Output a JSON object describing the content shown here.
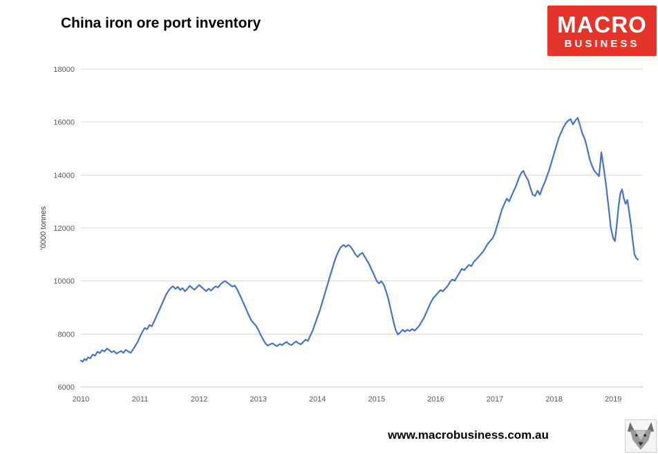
{
  "page": {
    "footer_url": "www.macrobusiness.com.au"
  },
  "logo": {
    "line1": "MACRO",
    "line2": "BUSINESS",
    "bg_color": "#e5352b",
    "text_color": "#ffffff"
  },
  "chart_data": {
    "type": "line",
    "title": "China iron ore port inventory",
    "xlabel": "",
    "ylabel": "'0000 tonnes",
    "xlim": [
      2010,
      2019.5
    ],
    "ylim": [
      6000,
      18000
    ],
    "x_ticks": [
      2010,
      2011,
      2012,
      2013,
      2014,
      2015,
      2016,
      2017,
      2018,
      2019
    ],
    "y_ticks": [
      6000,
      8000,
      10000,
      12000,
      14000,
      16000,
      18000
    ],
    "grid": true,
    "legend_position": "none",
    "line_color": "#4472c4",
    "gridline_color": "#d9d9d9",
    "axis_label_color": "#595959",
    "series": [
      {
        "name": "China iron ore port inventory",
        "points": [
          [
            2010.0,
            7000
          ],
          [
            2010.03,
            6950
          ],
          [
            2010.06,
            7060
          ],
          [
            2010.09,
            7010
          ],
          [
            2010.12,
            7120
          ],
          [
            2010.16,
            7080
          ],
          [
            2010.2,
            7230
          ],
          [
            2010.24,
            7180
          ],
          [
            2010.28,
            7330
          ],
          [
            2010.32,
            7280
          ],
          [
            2010.36,
            7390
          ],
          [
            2010.4,
            7340
          ],
          [
            2010.44,
            7450
          ],
          [
            2010.48,
            7390
          ],
          [
            2010.52,
            7310
          ],
          [
            2010.56,
            7360
          ],
          [
            2010.6,
            7260
          ],
          [
            2010.64,
            7310
          ],
          [
            2010.68,
            7360
          ],
          [
            2010.72,
            7290
          ],
          [
            2010.76,
            7400
          ],
          [
            2010.8,
            7340
          ],
          [
            2010.84,
            7290
          ],
          [
            2010.88,
            7410
          ],
          [
            2010.92,
            7550
          ],
          [
            2010.96,
            7700
          ],
          [
            2011.0,
            7900
          ],
          [
            2011.04,
            8080
          ],
          [
            2011.08,
            8230
          ],
          [
            2011.12,
            8180
          ],
          [
            2011.16,
            8340
          ],
          [
            2011.2,
            8290
          ],
          [
            2011.24,
            8480
          ],
          [
            2011.28,
            8680
          ],
          [
            2011.32,
            8880
          ],
          [
            2011.36,
            9080
          ],
          [
            2011.4,
            9280
          ],
          [
            2011.44,
            9480
          ],
          [
            2011.48,
            9630
          ],
          [
            2011.52,
            9740
          ],
          [
            2011.56,
            9800
          ],
          [
            2011.6,
            9700
          ],
          [
            2011.64,
            9780
          ],
          [
            2011.68,
            9660
          ],
          [
            2011.72,
            9730
          ],
          [
            2011.76,
            9610
          ],
          [
            2011.8,
            9700
          ],
          [
            2011.84,
            9820
          ],
          [
            2011.88,
            9740
          ],
          [
            2011.92,
            9670
          ],
          [
            2011.96,
            9760
          ],
          [
            2012.0,
            9850
          ],
          [
            2012.04,
            9770
          ],
          [
            2012.08,
            9690
          ],
          [
            2012.12,
            9620
          ],
          [
            2012.16,
            9710
          ],
          [
            2012.2,
            9640
          ],
          [
            2012.24,
            9730
          ],
          [
            2012.28,
            9800
          ],
          [
            2012.32,
            9760
          ],
          [
            2012.36,
            9880
          ],
          [
            2012.4,
            9950
          ],
          [
            2012.44,
            10000
          ],
          [
            2012.48,
            9930
          ],
          [
            2012.52,
            9860
          ],
          [
            2012.56,
            9790
          ],
          [
            2012.6,
            9830
          ],
          [
            2012.64,
            9700
          ],
          [
            2012.68,
            9510
          ],
          [
            2012.72,
            9310
          ],
          [
            2012.76,
            9110
          ],
          [
            2012.8,
            8910
          ],
          [
            2012.84,
            8710
          ],
          [
            2012.88,
            8520
          ],
          [
            2012.92,
            8410
          ],
          [
            2012.96,
            8310
          ],
          [
            2013.0,
            8160
          ],
          [
            2013.04,
            7960
          ],
          [
            2013.08,
            7800
          ],
          [
            2013.12,
            7650
          ],
          [
            2013.16,
            7560
          ],
          [
            2013.2,
            7610
          ],
          [
            2013.24,
            7650
          ],
          [
            2013.28,
            7580
          ],
          [
            2013.32,
            7545
          ],
          [
            2013.36,
            7620
          ],
          [
            2013.4,
            7580
          ],
          [
            2013.44,
            7650
          ],
          [
            2013.48,
            7700
          ],
          [
            2013.52,
            7620
          ],
          [
            2013.56,
            7580
          ],
          [
            2013.6,
            7660
          ],
          [
            2013.64,
            7720
          ],
          [
            2013.68,
            7650
          ],
          [
            2013.72,
            7610
          ],
          [
            2013.76,
            7700
          ],
          [
            2013.8,
            7790
          ],
          [
            2013.84,
            7740
          ],
          [
            2013.88,
            7940
          ],
          [
            2013.92,
            8140
          ],
          [
            2013.96,
            8390
          ],
          [
            2014.0,
            8640
          ],
          [
            2014.04,
            8890
          ],
          [
            2014.08,
            9190
          ],
          [
            2014.12,
            9490
          ],
          [
            2014.16,
            9790
          ],
          [
            2014.2,
            10090
          ],
          [
            2014.24,
            10390
          ],
          [
            2014.28,
            10690
          ],
          [
            2014.32,
            10940
          ],
          [
            2014.36,
            11140
          ],
          [
            2014.4,
            11290
          ],
          [
            2014.44,
            11360
          ],
          [
            2014.48,
            11290
          ],
          [
            2014.52,
            11360
          ],
          [
            2014.56,
            11300
          ],
          [
            2014.6,
            11160
          ],
          [
            2014.64,
            11010
          ],
          [
            2014.68,
            10910
          ],
          [
            2014.72,
            11010
          ],
          [
            2014.76,
            11060
          ],
          [
            2014.8,
            10910
          ],
          [
            2014.84,
            10760
          ],
          [
            2014.88,
            10610
          ],
          [
            2014.92,
            10410
          ],
          [
            2014.96,
            10210
          ],
          [
            2015.0,
            10010
          ],
          [
            2015.04,
            9910
          ],
          [
            2015.08,
            9990
          ],
          [
            2015.12,
            9860
          ],
          [
            2015.16,
            9610
          ],
          [
            2015.2,
            9310
          ],
          [
            2015.24,
            8910
          ],
          [
            2015.28,
            8510
          ],
          [
            2015.32,
            8160
          ],
          [
            2015.36,
            7980
          ],
          [
            2015.4,
            8060
          ],
          [
            2015.44,
            8160
          ],
          [
            2015.48,
            8090
          ],
          [
            2015.52,
            8160
          ],
          [
            2015.56,
            8110
          ],
          [
            2015.6,
            8190
          ],
          [
            2015.64,
            8130
          ],
          [
            2015.68,
            8210
          ],
          [
            2015.72,
            8310
          ],
          [
            2015.76,
            8460
          ],
          [
            2015.8,
            8610
          ],
          [
            2015.84,
            8810
          ],
          [
            2015.88,
            9010
          ],
          [
            2015.92,
            9210
          ],
          [
            2015.96,
            9360
          ],
          [
            2016.0,
            9460
          ],
          [
            2016.04,
            9560
          ],
          [
            2016.08,
            9660
          ],
          [
            2016.12,
            9610
          ],
          [
            2016.16,
            9710
          ],
          [
            2016.2,
            9810
          ],
          [
            2016.24,
            9960
          ],
          [
            2016.28,
            10060
          ],
          [
            2016.32,
            10010
          ],
          [
            2016.36,
            10160
          ],
          [
            2016.4,
            10310
          ],
          [
            2016.44,
            10460
          ],
          [
            2016.48,
            10410
          ],
          [
            2016.52,
            10510
          ],
          [
            2016.56,
            10610
          ],
          [
            2016.6,
            10560
          ],
          [
            2016.64,
            10710
          ],
          [
            2016.68,
            10810
          ],
          [
            2016.72,
            10910
          ],
          [
            2016.76,
            11010
          ],
          [
            2016.8,
            11110
          ],
          [
            2016.84,
            11260
          ],
          [
            2016.88,
            11410
          ],
          [
            2016.92,
            11510
          ],
          [
            2016.96,
            11610
          ],
          [
            2017.0,
            11810
          ],
          [
            2017.04,
            12110
          ],
          [
            2017.08,
            12410
          ],
          [
            2017.12,
            12710
          ],
          [
            2017.16,
            12910
          ],
          [
            2017.2,
            13110
          ],
          [
            2017.24,
            13010
          ],
          [
            2017.28,
            13210
          ],
          [
            2017.32,
            13410
          ],
          [
            2017.36,
            13610
          ],
          [
            2017.4,
            13860
          ],
          [
            2017.44,
            14060
          ],
          [
            2017.48,
            14160
          ],
          [
            2017.52,
            13960
          ],
          [
            2017.56,
            13810
          ],
          [
            2017.6,
            13510
          ],
          [
            2017.64,
            13260
          ],
          [
            2017.68,
            13210
          ],
          [
            2017.72,
            13410
          ],
          [
            2017.76,
            13260
          ],
          [
            2017.8,
            13510
          ],
          [
            2017.84,
            13710
          ],
          [
            2017.88,
            13960
          ],
          [
            2017.92,
            14210
          ],
          [
            2017.96,
            14510
          ],
          [
            2018.0,
            14810
          ],
          [
            2018.04,
            15110
          ],
          [
            2018.08,
            15410
          ],
          [
            2018.12,
            15610
          ],
          [
            2018.16,
            15810
          ],
          [
            2018.2,
            15960
          ],
          [
            2018.24,
            16060
          ],
          [
            2018.28,
            16110
          ],
          [
            2018.32,
            15910
          ],
          [
            2018.36,
            16060
          ],
          [
            2018.4,
            16160
          ],
          [
            2018.44,
            15860
          ],
          [
            2018.48,
            15560
          ],
          [
            2018.52,
            15360
          ],
          [
            2018.56,
            15010
          ],
          [
            2018.6,
            14610
          ],
          [
            2018.64,
            14360
          ],
          [
            2018.68,
            14160
          ],
          [
            2018.72,
            14060
          ],
          [
            2018.76,
            13960
          ],
          [
            2018.8,
            14860
          ],
          [
            2018.84,
            14260
          ],
          [
            2018.88,
            13610
          ],
          [
            2018.92,
            12810
          ],
          [
            2018.96,
            12010
          ],
          [
            2019.0,
            11610
          ],
          [
            2019.03,
            11510
          ],
          [
            2019.06,
            12110
          ],
          [
            2019.09,
            12810
          ],
          [
            2019.12,
            13310
          ],
          [
            2019.15,
            13460
          ],
          [
            2019.18,
            13110
          ],
          [
            2019.21,
            12910
          ],
          [
            2019.24,
            13060
          ],
          [
            2019.27,
            12610
          ],
          [
            2019.3,
            12110
          ],
          [
            2019.33,
            11510
          ],
          [
            2019.36,
            11010
          ],
          [
            2019.39,
            10860
          ],
          [
            2019.42,
            10810
          ]
        ]
      }
    ]
  }
}
